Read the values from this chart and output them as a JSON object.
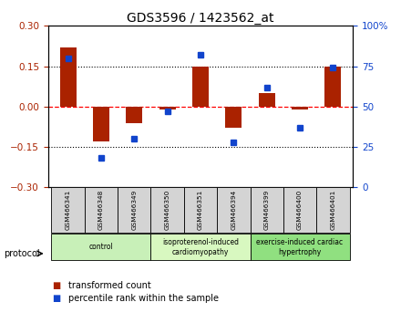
{
  "title": "GDS3596 / 1423562_at",
  "samples": [
    "GSM466341",
    "GSM466348",
    "GSM466349",
    "GSM466350",
    "GSM466351",
    "GSM466394",
    "GSM466399",
    "GSM466400",
    "GSM466401"
  ],
  "transformed_count": [
    0.22,
    -0.13,
    -0.06,
    -0.01,
    0.15,
    -0.08,
    0.05,
    -0.01,
    0.15
  ],
  "percentile_rank": [
    80,
    18,
    30,
    47,
    82,
    28,
    62,
    37,
    74
  ],
  "bar_color": "#aa2200",
  "dot_color": "#1144cc",
  "ylim_left": [
    -0.3,
    0.3
  ],
  "ylim_right": [
    0,
    100
  ],
  "yticks_left": [
    -0.3,
    -0.15,
    0.0,
    0.15,
    0.3
  ],
  "yticks_right": [
    0,
    25,
    50,
    75,
    100
  ],
  "hlines": [
    -0.15,
    0.0,
    0.15
  ],
  "hline_styles": [
    "dotted",
    "dashed",
    "dotted"
  ],
  "hline_colors": [
    "black",
    "red",
    "black"
  ],
  "groups": [
    {
      "label": "control",
      "start": 0,
      "end": 3,
      "color": "#c8f0b8"
    },
    {
      "label": "isoproterenol-induced\ncardiomyopathy",
      "start": 3,
      "end": 6,
      "color": "#d8f8c0"
    },
    {
      "label": "exercise-induced cardiac\nhypertrophy",
      "start": 6,
      "end": 9,
      "color": "#90e080"
    }
  ],
  "protocol_label": "protocol",
  "legend_items": [
    {
      "label": "transformed count",
      "color": "#aa2200"
    },
    {
      "label": "percentile rank within the sample",
      "color": "#1144cc"
    }
  ],
  "bar_width": 0.5,
  "bg_color": "#ffffff"
}
